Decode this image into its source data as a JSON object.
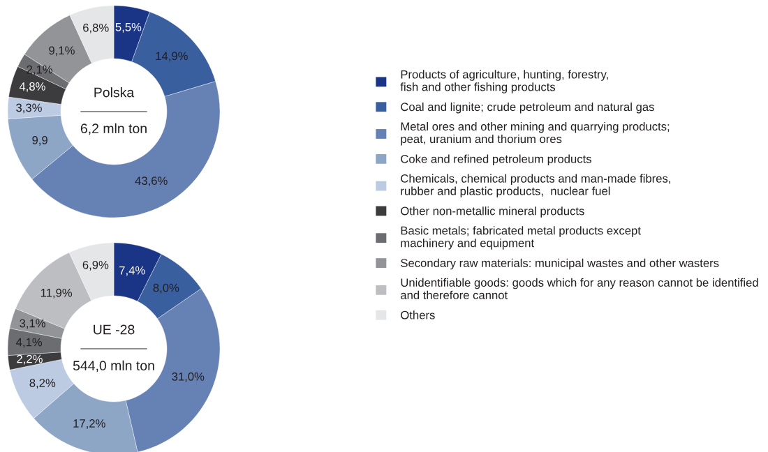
{
  "chart_data": [
    {
      "type": "donut",
      "title": "Polska",
      "subtitle": "6,2 mln ton",
      "legend": "right",
      "categories": [
        "Products of agriculture, hunting, forestry,\nfish and other fishing products",
        "Coal and lignite; crude petroleum and natural gas",
        "Metal ores and other mining and quarrying products;\npeat, uranium and thorium ores",
        "Coke and refined petroleum products",
        "Chemicals, chemical products and man-made fibres,\nrubber and plastic products,  nuclear fuel",
        "Other non-metallic mineral products",
        "Basic metals; fabricated metal products except\nmachinery and equipment",
        "Secondary raw materials: municipal wastes and other wasters",
        "Unidentifiable goods: goods which for any reason cannot be identified\nand therefore cannot",
        "Others"
      ],
      "values": [
        5.5,
        14.9,
        43.6,
        9.9,
        3.3,
        4.8,
        2.1,
        9.1,
        null,
        6.8
      ],
      "value_labels": [
        "5,5%",
        "14,9%",
        "43,6%",
        "9,9",
        "3,3%",
        "4,8%",
        "2,1%",
        "9,1%",
        null,
        "6,8%"
      ],
      "colors": [
        "#1a3586",
        "#3a5f9e",
        "#6681b3",
        "#8ea6c6",
        "#bccbe2",
        "#3c3c3e",
        "#6c6d71",
        "#939497",
        "#bdbec1",
        "#e5e6e8"
      ]
    },
    {
      "type": "donut",
      "title": "UE -28",
      "subtitle": "544,0 mln ton",
      "categories": [
        null,
        null,
        null,
        null,
        null,
        null,
        null,
        null,
        null,
        null
      ],
      "values": [
        7.4,
        8.0,
        31.0,
        17.2,
        8.2,
        2.2,
        4.1,
        3.1,
        11.9,
        6.9
      ],
      "value_labels": [
        "7,4%",
        "8,0%",
        "31,0%",
        "17,2%",
        "8,2%",
        "2,2%",
        "4,1%",
        "3,1%",
        "11,9%",
        "6,9%"
      ],
      "colors": [
        "#1a3586",
        "#3a5f9e",
        "#6681b3",
        "#8ea6c6",
        "#bccbe2",
        "#3c3c3e",
        "#6c6d71",
        "#939497",
        "#bdbec1",
        "#e5e6e8"
      ]
    }
  ]
}
